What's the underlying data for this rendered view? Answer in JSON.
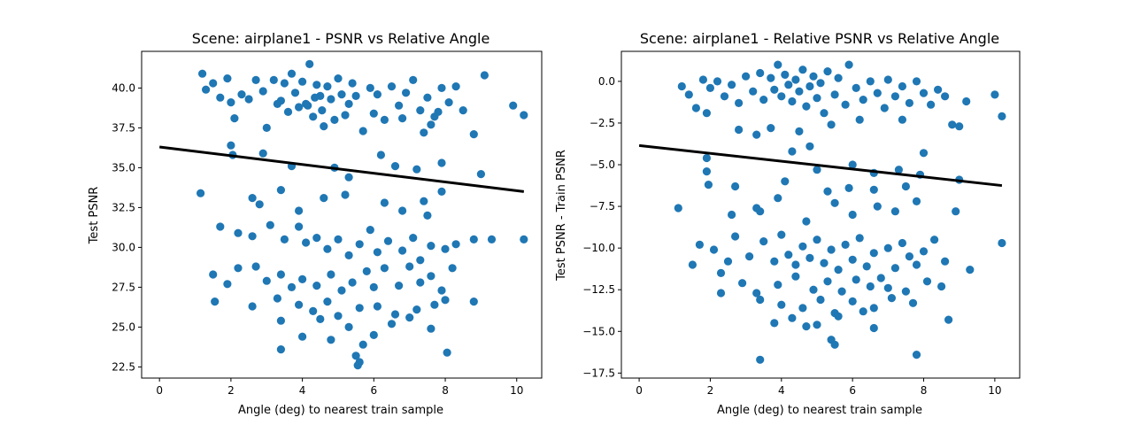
{
  "chart_data": [
    {
      "type": "scatter",
      "title": "Scene: airplane1 - PSNR vs Relative Angle",
      "xlabel": "Angle (deg) to nearest train sample",
      "ylabel": "Test PSNR",
      "xlim": [
        -0.5,
        10.7
      ],
      "ylim": [
        21.8,
        42.3
      ],
      "xticks": [
        0,
        2,
        4,
        6,
        8,
        10
      ],
      "yticks": [
        22.5,
        25.0,
        27.5,
        30.0,
        32.5,
        35.0,
        37.5,
        40.0
      ],
      "xtick_labels": [
        "0",
        "2",
        "4",
        "6",
        "8",
        "10"
      ],
      "ytick_labels": [
        "22.5",
        "25.0",
        "27.5",
        "30.0",
        "32.5",
        "35.0",
        "37.5",
        "40.0"
      ],
      "grid": false,
      "marker_color": "#1f77b4",
      "fit_line": {
        "x": [
          0,
          10.2
        ],
        "y": [
          36.3,
          33.5
        ],
        "color": "#000000"
      },
      "points": [
        [
          1.2,
          40.9
        ],
        [
          1.3,
          39.9
        ],
        [
          1.5,
          40.3
        ],
        [
          1.7,
          39.4
        ],
        [
          1.9,
          40.6
        ],
        [
          2.0,
          39.1
        ],
        [
          2.1,
          38.1
        ],
        [
          2.3,
          39.6
        ],
        [
          2.5,
          39.3
        ],
        [
          2.7,
          40.5
        ],
        [
          2.9,
          39.8
        ],
        [
          3.0,
          37.5
        ],
        [
          3.2,
          40.5
        ],
        [
          3.4,
          39.2
        ],
        [
          3.5,
          40.3
        ],
        [
          3.6,
          38.5
        ],
        [
          3.7,
          40.9
        ],
        [
          3.8,
          39.7
        ],
        [
          3.9,
          38.8
        ],
        [
          4.0,
          40.4
        ],
        [
          4.1,
          39.0
        ],
        [
          4.2,
          41.5
        ],
        [
          4.3,
          38.2
        ],
        [
          4.4,
          40.2
        ],
        [
          4.5,
          39.5
        ],
        [
          4.6,
          37.6
        ],
        [
          4.7,
          40.1
        ],
        [
          4.8,
          39.3
        ],
        [
          4.9,
          38.0
        ],
        [
          5.0,
          40.6
        ],
        [
          5.1,
          39.6
        ],
        [
          5.2,
          38.3
        ],
        [
          5.4,
          40.3
        ],
        [
          5.5,
          39.5
        ],
        [
          5.7,
          37.3
        ],
        [
          5.9,
          40.0
        ],
        [
          6.1,
          39.6
        ],
        [
          6.3,
          38.0
        ],
        [
          6.5,
          40.1
        ],
        [
          6.7,
          38.9
        ],
        [
          6.9,
          39.7
        ],
        [
          7.1,
          40.5
        ],
        [
          7.3,
          38.6
        ],
        [
          7.5,
          39.4
        ],
        [
          7.6,
          37.7
        ],
        [
          7.7,
          38.2
        ],
        [
          7.9,
          40.0
        ],
        [
          8.1,
          39.1
        ],
        [
          8.3,
          40.1
        ],
        [
          8.5,
          38.6
        ],
        [
          8.8,
          37.1
        ],
        [
          9.1,
          40.8
        ],
        [
          9.9,
          38.9
        ],
        [
          10.2,
          38.3
        ],
        [
          3.3,
          39.0
        ],
        [
          4.15,
          38.9
        ],
        [
          4.35,
          39.4
        ],
        [
          4.55,
          38.6
        ],
        [
          5.3,
          39.0
        ],
        [
          6.0,
          38.4
        ],
        [
          6.8,
          38.1
        ],
        [
          7.4,
          37.2
        ],
        [
          7.8,
          38.5
        ],
        [
          2.05,
          35.8
        ],
        [
          2.0,
          36.4
        ],
        [
          2.9,
          35.9
        ],
        [
          3.7,
          35.1
        ],
        [
          4.9,
          35.0
        ],
        [
          5.3,
          34.4
        ],
        [
          6.2,
          35.8
        ],
        [
          6.6,
          35.1
        ],
        [
          7.2,
          34.9
        ],
        [
          7.9,
          35.3
        ],
        [
          9.0,
          34.6
        ],
        [
          1.15,
          33.4
        ],
        [
          2.6,
          33.1
        ],
        [
          3.4,
          33.6
        ],
        [
          4.6,
          33.1
        ],
        [
          5.2,
          33.3
        ],
        [
          6.3,
          32.8
        ],
        [
          7.4,
          32.9
        ],
        [
          7.9,
          33.5
        ],
        [
          3.9,
          32.3
        ],
        [
          2.8,
          32.7
        ],
        [
          6.8,
          32.3
        ],
        [
          7.5,
          32.0
        ],
        [
          1.7,
          31.3
        ],
        [
          2.2,
          30.9
        ],
        [
          2.6,
          30.7
        ],
        [
          3.1,
          31.4
        ],
        [
          3.5,
          30.5
        ],
        [
          3.9,
          31.3
        ],
        [
          4.1,
          30.3
        ],
        [
          4.4,
          30.6
        ],
        [
          4.7,
          29.9
        ],
        [
          5.0,
          30.5
        ],
        [
          5.3,
          29.5
        ],
        [
          5.6,
          30.2
        ],
        [
          5.9,
          31.1
        ],
        [
          6.1,
          29.7
        ],
        [
          6.4,
          30.4
        ],
        [
          6.8,
          29.8
        ],
        [
          7.1,
          30.6
        ],
        [
          7.3,
          29.2
        ],
        [
          7.6,
          30.1
        ],
        [
          8.0,
          29.9
        ],
        [
          8.3,
          30.2
        ],
        [
          8.8,
          30.5
        ],
        [
          9.3,
          30.5
        ],
        [
          10.2,
          30.5
        ],
        [
          1.5,
          28.3
        ],
        [
          1.9,
          27.7
        ],
        [
          2.2,
          28.7
        ],
        [
          2.7,
          28.8
        ],
        [
          3.0,
          27.9
        ],
        [
          3.4,
          28.3
        ],
        [
          3.7,
          27.5
        ],
        [
          4.0,
          28.0
        ],
        [
          4.4,
          27.6
        ],
        [
          4.8,
          28.3
        ],
        [
          5.1,
          27.3
        ],
        [
          5.4,
          27.8
        ],
        [
          5.8,
          28.5
        ],
        [
          6.0,
          27.5
        ],
        [
          6.3,
          28.7
        ],
        [
          6.7,
          27.6
        ],
        [
          7.0,
          28.8
        ],
        [
          7.3,
          27.8
        ],
        [
          7.6,
          28.2
        ],
        [
          7.9,
          27.3
        ],
        [
          8.2,
          28.7
        ],
        [
          1.55,
          26.6
        ],
        [
          2.6,
          26.3
        ],
        [
          3.3,
          26.8
        ],
        [
          3.9,
          26.4
        ],
        [
          4.3,
          26.0
        ],
        [
          4.7,
          26.6
        ],
        [
          5.0,
          25.7
        ],
        [
          5.6,
          26.2
        ],
        [
          6.1,
          26.3
        ],
        [
          6.6,
          25.8
        ],
        [
          7.2,
          26.1
        ],
        [
          7.7,
          26.4
        ],
        [
          8.0,
          26.7
        ],
        [
          8.8,
          26.6
        ],
        [
          3.4,
          25.4
        ],
        [
          4.0,
          24.4
        ],
        [
          4.8,
          24.2
        ],
        [
          5.3,
          25.0
        ],
        [
          5.7,
          23.9
        ],
        [
          6.5,
          25.2
        ],
        [
          7.6,
          24.9
        ],
        [
          3.4,
          23.6
        ],
        [
          5.5,
          23.2
        ],
        [
          5.6,
          22.8
        ],
        [
          5.55,
          22.6
        ],
        [
          8.05,
          23.4
        ],
        [
          7.0,
          25.6
        ],
        [
          4.5,
          25.5
        ],
        [
          6.0,
          24.5
        ]
      ]
    },
    {
      "type": "scatter",
      "title": "Scene: airplane1 - Relative PSNR vs Relative Angle",
      "xlabel": "Angle (deg) to nearest train sample",
      "ylabel": "Test PSNR - Train PSNR",
      "xlim": [
        -0.5,
        10.7
      ],
      "ylim": [
        -17.8,
        1.8
      ],
      "xticks": [
        0,
        2,
        4,
        6,
        8,
        10
      ],
      "yticks": [
        -17.5,
        -15.0,
        -12.5,
        -10.0,
        -7.5,
        -5.0,
        -2.5,
        0.0
      ],
      "xtick_labels": [
        "0",
        "2",
        "4",
        "6",
        "8",
        "10"
      ],
      "ytick_labels": [
        "−17.5",
        "−15.0",
        "−12.5",
        "−10.0",
        "−7.5",
        "−5.0",
        "−2.5",
        "0.0"
      ],
      "grid": false,
      "marker_color": "#1f77b4",
      "fit_line": {
        "x": [
          0,
          10.2
        ],
        "y": [
          -3.85,
          -6.25
        ],
        "color": "#000000"
      },
      "points": [
        [
          1.2,
          -0.3
        ],
        [
          1.4,
          -0.8
        ],
        [
          1.6,
          -1.6
        ],
        [
          1.8,
          0.1
        ],
        [
          2.0,
          -0.4
        ],
        [
          2.2,
          0.0
        ],
        [
          2.4,
          -0.9
        ],
        [
          2.6,
          -0.2
        ],
        [
          2.8,
          -1.3
        ],
        [
          3.0,
          0.3
        ],
        [
          3.2,
          -0.6
        ],
        [
          3.4,
          0.5
        ],
        [
          3.5,
          -1.1
        ],
        [
          3.7,
          0.2
        ],
        [
          3.8,
          -0.5
        ],
        [
          3.9,
          1.0
        ],
        [
          4.0,
          -0.9
        ],
        [
          4.1,
          0.4
        ],
        [
          4.2,
          -0.2
        ],
        [
          4.3,
          -1.2
        ],
        [
          4.4,
          0.1
        ],
        [
          4.5,
          -0.6
        ],
        [
          4.6,
          0.7
        ],
        [
          4.7,
          -1.5
        ],
        [
          4.8,
          -0.3
        ],
        [
          4.9,
          0.3
        ],
        [
          5.0,
          -1.0
        ],
        [
          5.1,
          -0.1
        ],
        [
          5.2,
          -1.9
        ],
        [
          5.3,
          0.6
        ],
        [
          5.5,
          -0.8
        ],
        [
          5.6,
          0.2
        ],
        [
          5.8,
          -1.4
        ],
        [
          5.9,
          1.0
        ],
        [
          6.1,
          -0.4
        ],
        [
          6.3,
          -1.1
        ],
        [
          6.5,
          0.0
        ],
        [
          6.7,
          -0.7
        ],
        [
          6.9,
          -1.6
        ],
        [
          7.0,
          0.1
        ],
        [
          7.2,
          -0.9
        ],
        [
          7.4,
          -0.3
        ],
        [
          7.6,
          -1.3
        ],
        [
          7.8,
          0.0
        ],
        [
          8.0,
          -0.7
        ],
        [
          8.2,
          -1.4
        ],
        [
          8.4,
          -0.5
        ],
        [
          8.6,
          -0.9
        ],
        [
          8.8,
          -2.6
        ],
        [
          9.2,
          -1.2
        ],
        [
          9.0,
          -2.7
        ],
        [
          10.0,
          -0.8
        ],
        [
          10.2,
          -2.1
        ],
        [
          1.9,
          -1.9
        ],
        [
          2.8,
          -2.9
        ],
        [
          3.7,
          -2.8
        ],
        [
          4.5,
          -3.0
        ],
        [
          5.4,
          -2.6
        ],
        [
          6.2,
          -2.3
        ],
        [
          7.4,
          -2.3
        ],
        [
          1.9,
          -4.6
        ],
        [
          3.3,
          -3.2
        ],
        [
          4.3,
          -4.2
        ],
        [
          4.8,
          -3.9
        ],
        [
          5.0,
          -5.3
        ],
        [
          6.0,
          -5.0
        ],
        [
          6.6,
          -5.5
        ],
        [
          7.3,
          -5.3
        ],
        [
          7.9,
          -5.6
        ],
        [
          8.0,
          -4.3
        ],
        [
          9.0,
          -5.9
        ],
        [
          1.9,
          -5.4
        ],
        [
          1.95,
          -6.2
        ],
        [
          2.7,
          -6.3
        ],
        [
          3.3,
          -7.6
        ],
        [
          4.1,
          -6.0
        ],
        [
          5.3,
          -6.6
        ],
        [
          5.9,
          -6.4
        ],
        [
          6.6,
          -6.5
        ],
        [
          7.5,
          -6.3
        ],
        [
          1.1,
          -7.6
        ],
        [
          2.6,
          -8.0
        ],
        [
          3.4,
          -7.8
        ],
        [
          3.9,
          -7.0
        ],
        [
          4.7,
          -8.4
        ],
        [
          5.5,
          -7.3
        ],
        [
          6.0,
          -8.0
        ],
        [
          6.7,
          -7.5
        ],
        [
          7.2,
          -7.8
        ],
        [
          7.8,
          -7.2
        ],
        [
          8.9,
          -7.8
        ],
        [
          1.7,
          -9.8
        ],
        [
          2.1,
          -10.1
        ],
        [
          2.5,
          -10.8
        ],
        [
          2.7,
          -9.3
        ],
        [
          3.1,
          -10.5
        ],
        [
          3.5,
          -9.6
        ],
        [
          3.8,
          -10.8
        ],
        [
          4.0,
          -9.2
        ],
        [
          4.2,
          -10.4
        ],
        [
          4.4,
          -11.0
        ],
        [
          4.6,
          -9.9
        ],
        [
          4.8,
          -10.6
        ],
        [
          5.0,
          -9.5
        ],
        [
          5.2,
          -10.9
        ],
        [
          5.4,
          -10.1
        ],
        [
          5.6,
          -11.3
        ],
        [
          5.8,
          -9.8
        ],
        [
          6.0,
          -10.7
        ],
        [
          6.2,
          -9.4
        ],
        [
          6.4,
          -11.1
        ],
        [
          6.6,
          -10.3
        ],
        [
          6.8,
          -11.8
        ],
        [
          7.0,
          -10.0
        ],
        [
          7.2,
          -11.2
        ],
        [
          7.4,
          -9.7
        ],
        [
          7.6,
          -10.5
        ],
        [
          7.8,
          -11.0
        ],
        [
          8.0,
          -10.2
        ],
        [
          8.3,
          -9.5
        ],
        [
          8.6,
          -10.8
        ],
        [
          9.3,
          -11.3
        ],
        [
          10.2,
          -9.7
        ],
        [
          1.5,
          -11.0
        ],
        [
          2.3,
          -11.5
        ],
        [
          2.9,
          -12.1
        ],
        [
          3.3,
          -12.7
        ],
        [
          3.9,
          -12.2
        ],
        [
          4.4,
          -11.7
        ],
        [
          4.9,
          -12.5
        ],
        [
          5.3,
          -12.0
        ],
        [
          5.7,
          -12.6
        ],
        [
          6.1,
          -11.9
        ],
        [
          6.5,
          -12.3
        ],
        [
          7.0,
          -12.4
        ],
        [
          7.5,
          -12.6
        ],
        [
          8.1,
          -12.0
        ],
        [
          8.5,
          -12.3
        ],
        [
          2.3,
          -12.7
        ],
        [
          3.4,
          -13.1
        ],
        [
          4.0,
          -13.4
        ],
        [
          4.6,
          -13.6
        ],
        [
          5.1,
          -13.1
        ],
        [
          5.5,
          -13.9
        ],
        [
          6.0,
          -13.2
        ],
        [
          6.6,
          -13.6
        ],
        [
          7.1,
          -13.0
        ],
        [
          7.7,
          -13.3
        ],
        [
          3.8,
          -14.5
        ],
        [
          4.7,
          -14.7
        ],
        [
          5.6,
          -14.1
        ],
        [
          6.6,
          -14.8
        ],
        [
          8.7,
          -14.3
        ],
        [
          5.4,
          -15.5
        ],
        [
          5.5,
          -15.8
        ],
        [
          7.8,
          -16.4
        ],
        [
          3.4,
          -16.7
        ],
        [
          5.0,
          -14.6
        ],
        [
          6.3,
          -13.8
        ],
        [
          4.3,
          -14.2
        ]
      ]
    }
  ]
}
